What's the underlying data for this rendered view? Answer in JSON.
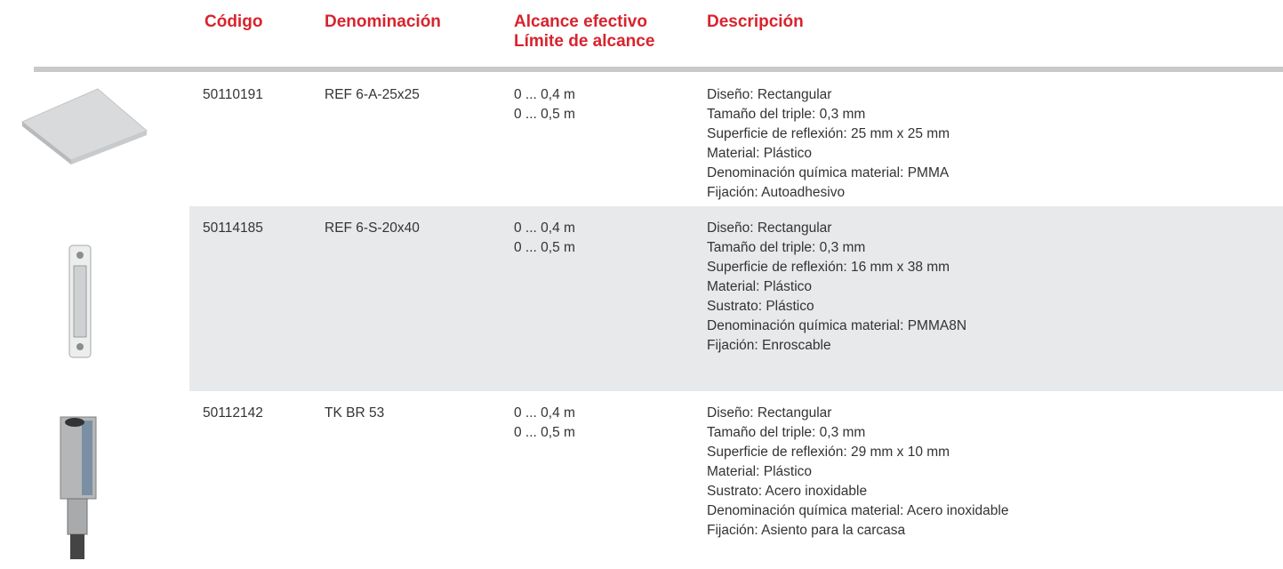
{
  "header": {
    "code": "Código",
    "name": "Denominación",
    "range": [
      "Alcance efectivo",
      "Límite de alcance"
    ],
    "description": "Descripción"
  },
  "rows": [
    {
      "code": "50110191",
      "name": "REF 6-A-25x25",
      "range": [
        "0 ... 0,4 m",
        "0 ... 0,5 m"
      ],
      "description": [
        "Diseño: Rectangular",
        "Tamaño del triple: 0,3 mm",
        "Superficie de reflexión: 25 mm x 25 mm",
        "Material: Plástico",
        "Denominación química material: PMMA",
        "Fijación: Autoadhesivo"
      ]
    },
    {
      "code": "50114185",
      "name": "REF 6-S-20x40",
      "range": [
        "0 ... 0,4 m",
        "0 ... 0,5 m"
      ],
      "description": [
        "Diseño: Rectangular",
        "Tamaño del triple: 0,3 mm",
        "Superficie de reflexión: 16 mm x 38 mm",
        "Material: Plástico",
        "Sustrato: Plástico",
        "Denominación química material: PMMA8N",
        "Fijación: Enroscable"
      ]
    },
    {
      "code": "50112142",
      "name": "TK BR 53",
      "range": [
        "0 ... 0,4 m",
        "0 ... 0,5 m"
      ],
      "description": [
        "Diseño: Rectangular",
        "Tamaño del triple: 0,3 mm",
        "Superficie de reflexión: 29 mm x 10 mm",
        "Material: Plástico",
        "Sustrato: Acero inoxidable",
        "Denominación química material: Acero inoxidable",
        "Fijación: Asiento para la carcasa"
      ]
    }
  ]
}
